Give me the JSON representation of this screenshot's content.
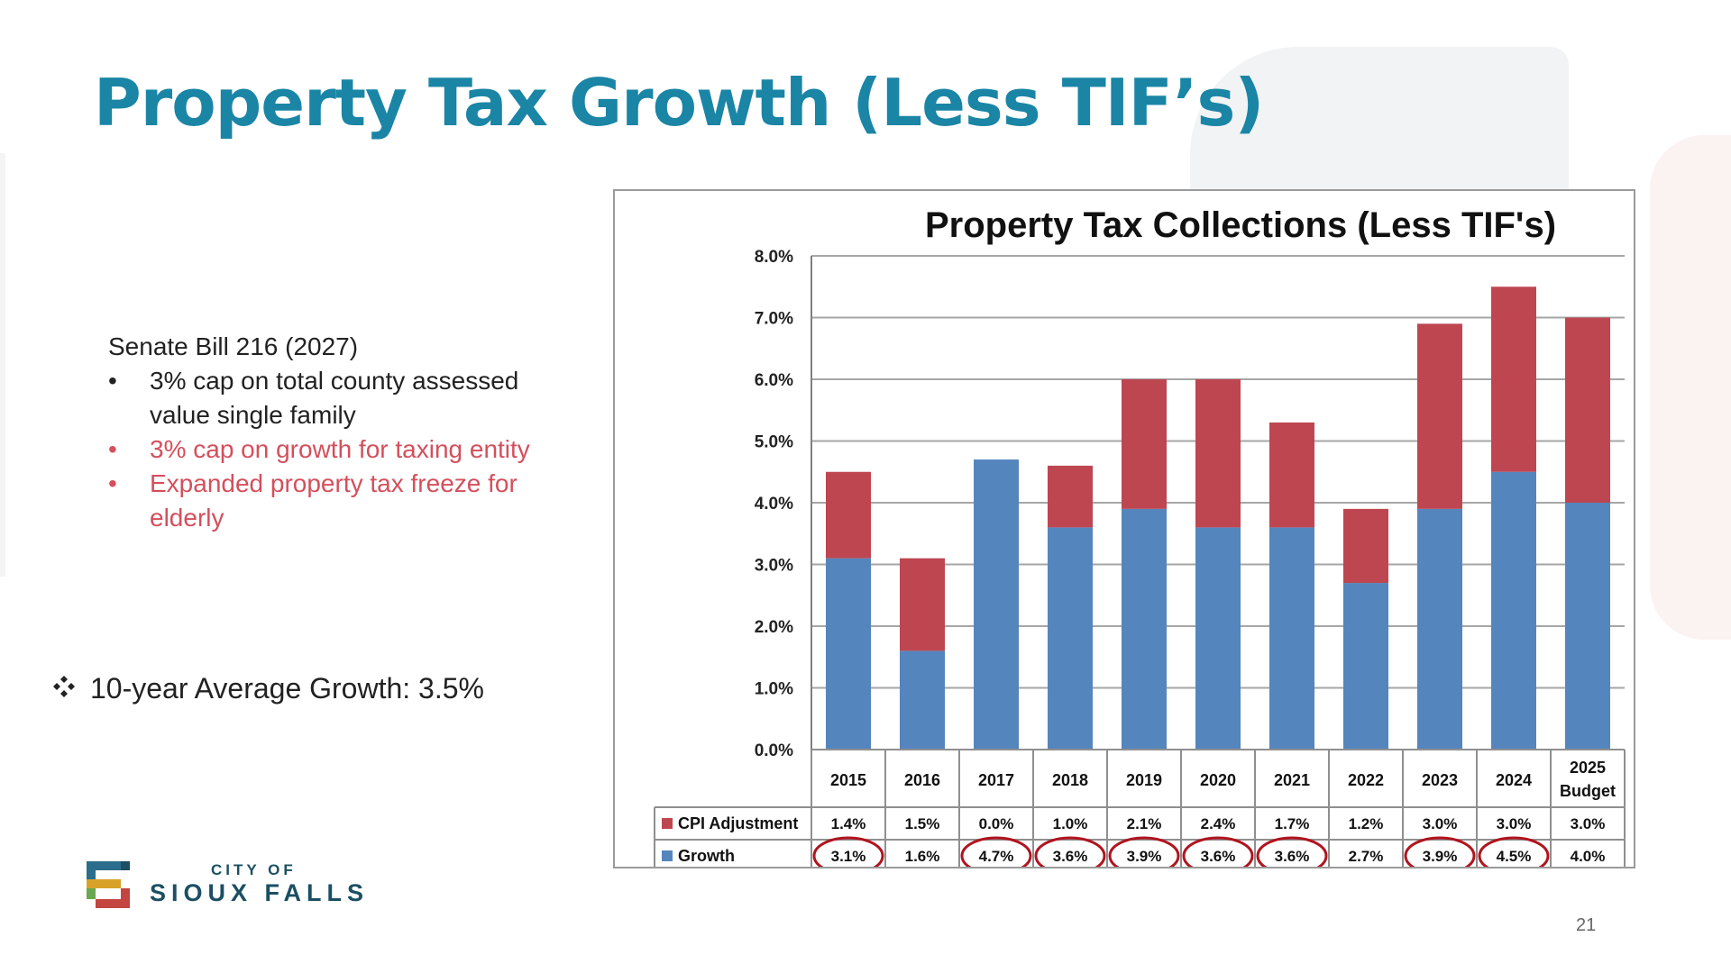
{
  "slide": {
    "title": "Property Tax Growth (Less TIF’s)",
    "page_number": "21"
  },
  "bill": {
    "title": "Senate Bill 216 (2027)",
    "bullets": [
      {
        "text": "3% cap on total county assessed value single family",
        "color": "#222222"
      },
      {
        "text": "3% cap on growth for taxing entity",
        "color": "#d44f5c"
      },
      {
        "text": "Expanded property tax freeze for elderly",
        "color": "#d44f5c"
      }
    ]
  },
  "average": {
    "text": "10-year Average Growth: 3.5%",
    "icon": "four-diamond-icon"
  },
  "logo": {
    "top": "CITY OF",
    "bottom": "SIOUX FALLS",
    "icon": "city-of-sioux-falls-logo-icon"
  },
  "chart_data": {
    "type": "bar",
    "stacked": true,
    "title": "Property Tax Collections (Less TIF's)",
    "categories": [
      "2015",
      "2016",
      "2017",
      "2018",
      "2019",
      "2020",
      "2021",
      "2022",
      "2023",
      "2024",
      "2025 Budget"
    ],
    "series": [
      {
        "name": "Growth",
        "color": "#5585bd",
        "values": [
          3.1,
          1.6,
          4.7,
          3.6,
          3.9,
          3.6,
          3.6,
          2.7,
          3.9,
          4.5,
          4.0
        ]
      },
      {
        "name": "CPI Adjustment",
        "color": "#bd4651",
        "values": [
          1.4,
          1.5,
          0.0,
          1.0,
          2.1,
          2.4,
          1.7,
          1.2,
          3.0,
          3.0,
          3.0
        ]
      }
    ],
    "table_rows": [
      {
        "name": "CPI Adjustment",
        "values": [
          "1.4%",
          "1.5%",
          "0.0%",
          "1.0%",
          "2.1%",
          "2.4%",
          "1.7%",
          "1.2%",
          "3.0%",
          "3.0%",
          "3.0%"
        ]
      },
      {
        "name": "Growth",
        "values": [
          "3.1%",
          "1.6%",
          "4.7%",
          "3.6%",
          "3.9%",
          "3.6%",
          "3.6%",
          "2.7%",
          "3.9%",
          "4.5%",
          "4.0%"
        ]
      }
    ],
    "circled_growth_years": [
      "2015",
      "2017",
      "2018",
      "2019",
      "2020",
      "2021",
      "2023",
      "2024"
    ],
    "y_ticks": [
      "0.0%",
      "1.0%",
      "2.0%",
      "3.0%",
      "4.0%",
      "5.0%",
      "6.0%",
      "7.0%",
      "8.0%"
    ],
    "ylim": [
      0,
      8
    ],
    "grid": true,
    "legend": "data-table"
  }
}
